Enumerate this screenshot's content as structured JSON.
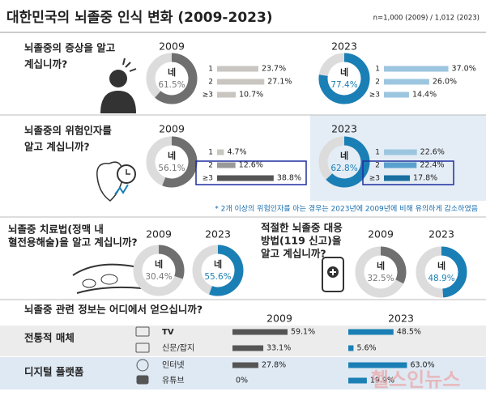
{
  "title": "대한민국의 뇌졸중 인식 변화 (2009-2023)",
  "sample_note": "n=1,000 (2009) / 1,012 (2023)",
  "yes_text": "네",
  "count_levels": [
    "1",
    "2",
    "≥3"
  ],
  "panels": [
    {
      "question": [
        "뇌졸중의 증상을 알고",
        "계십니까?"
      ],
      "years": [
        {
          "year": "2009",
          "yes": 61.5,
          "yes_label": "61.5%",
          "counts": [
            23.7,
            27.1,
            10.7
          ],
          "count_labels": [
            "23.7%",
            "27.1%",
            "10.7%"
          ]
        },
        {
          "year": "2023",
          "yes": 77.4,
          "yes_label": "77.4%",
          "counts": [
            37.0,
            26.0,
            14.4
          ],
          "count_labels": [
            "37.0%",
            "26.0%",
            "14.4%"
          ]
        }
      ]
    },
    {
      "question": [
        "뇌졸중의 위험인자를",
        "알고 계십니까?"
      ],
      "years": [
        {
          "year": "2009",
          "yes": 56.1,
          "yes_label": "56.1%",
          "counts": [
            4.7,
            12.6,
            38.8
          ],
          "count_labels": [
            "4.7%",
            "12.6%",
            "38.8%"
          ]
        },
        {
          "year": "2023",
          "yes": 62.8,
          "yes_label": "62.8%",
          "counts": [
            22.6,
            22.4,
            17.8
          ],
          "count_labels": [
            "22.6%",
            "22.4%",
            "17.8%"
          ]
        }
      ],
      "footnote": "* 2개 이상의 위험인자를 아는 경우는 2023년에 2009년에 비해 유의하게 감소하였음"
    }
  ],
  "small_panels": [
    {
      "question": [
        "뇌졸중 치료법(정맥 내",
        "혈전용해술)을 알고 계십니까?"
      ],
      "years": [
        {
          "year": "2009",
          "yes": 30.4,
          "yes_label": "30.4%"
        },
        {
          "year": "2023",
          "yes": 55.6,
          "yes_label": "55.6%"
        }
      ]
    },
    {
      "question": [
        "적절한 뇌졸중 대응",
        "방법(119 신고)을",
        "알고 계십니까?"
      ],
      "years": [
        {
          "year": "2009",
          "yes": 32.5,
          "yes_label": "32.5%"
        },
        {
          "year": "2023",
          "yes": 48.9,
          "yes_label": "48.9%"
        }
      ]
    }
  ],
  "sources": {
    "question": "뇌졸중 관련 정보는 어디에서 얻으십니까?",
    "years": [
      "2009",
      "2023"
    ],
    "groups": [
      {
        "name": "전통적 매체",
        "items": [
          {
            "name": "TV",
            "values": [
              59.1,
              48.5
            ],
            "value_labels": [
              "59.1%",
              "48.5%"
            ]
          },
          {
            "name": "신문/잡지",
            "values": [
              33.1,
              5.6
            ],
            "value_labels": [
              "33.1%",
              "5.6%"
            ]
          }
        ]
      },
      {
        "name": "디지털 플랫폼",
        "items": [
          {
            "name": "인터넷",
            "values": [
              27.8,
              63.0
            ],
            "value_labels": [
              "27.8%",
              "63.0%"
            ]
          },
          {
            "name": "유튜브",
            "values": [
              0,
              19.9
            ],
            "value_labels": [
              "0%",
              "19.9%"
            ]
          }
        ]
      }
    ]
  },
  "watermark": "헬스인뉴스"
}
